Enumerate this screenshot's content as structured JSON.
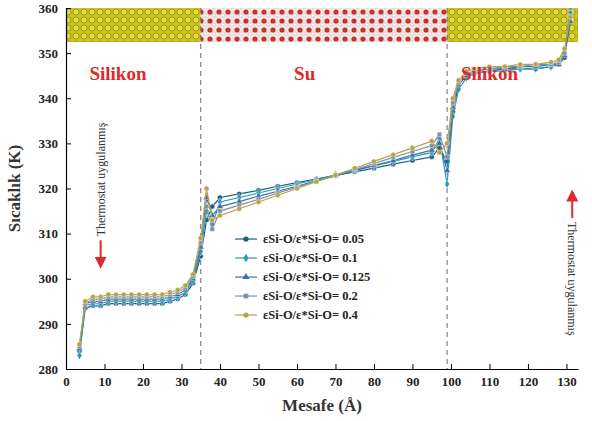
{
  "chart_data": {
    "type": "line",
    "x_label": "Mesafe (Å)",
    "y_label": "Sıcaklık (K)",
    "xlim": [
      0,
      133
    ],
    "ylim": [
      280,
      360
    ],
    "xticks": [
      0,
      10,
      20,
      30,
      40,
      50,
      60,
      70,
      80,
      90,
      100,
      110,
      120,
      130
    ],
    "yticks": [
      280,
      290,
      300,
      310,
      320,
      330,
      340,
      350,
      360
    ],
    "grid": false,
    "legend": "center",
    "interfaces": [
      35,
      99
    ],
    "annotations": [
      {
        "text": "Silikon",
        "x": 13.5,
        "y": 344
      },
      {
        "text": "Su",
        "x": 62,
        "y": 344
      },
      {
        "text": "Silikon",
        "x": 110,
        "y": 344
      }
    ],
    "side_notes": [
      {
        "text": "Thermostat uygulanmış",
        "x": 9,
        "y": 322
      },
      {
        "text": "Thermostat uygulanmış",
        "x": 131.5,
        "y": 300
      }
    ],
    "x": [
      3.5,
      5,
      7,
      9,
      11,
      13,
      15,
      17,
      19,
      21,
      23,
      25,
      27,
      29,
      31,
      33,
      35,
      36.5,
      38,
      40,
      45,
      50,
      55,
      60,
      65,
      70,
      75,
      80,
      85,
      90,
      95,
      97,
      99,
      100.5,
      102,
      104,
      106,
      110,
      114,
      118,
      122,
      126,
      128,
      129.5,
      131
    ],
    "series": [
      {
        "name": "εSi-O/ε*Si-O= 0.05",
        "color": "#1b5e80",
        "marker": "circle",
        "values": [
          284,
          293.5,
          294,
          294,
          294.5,
          294.5,
          294.5,
          294.5,
          294.5,
          294.5,
          294.5,
          294.5,
          295,
          295.5,
          296.5,
          299,
          305,
          313,
          316,
          318,
          318.8,
          319.6,
          320.5,
          321.3,
          322.1,
          322.9,
          323.7,
          324.5,
          325.4,
          326.2,
          327,
          329,
          326,
          337,
          343,
          345,
          345.5,
          346,
          346.5,
          346.5,
          346.5,
          347,
          347.5,
          349,
          358
        ]
      },
      {
        "name": "εSi-O/ε*Si-O= 0.1",
        "color": "#2a9bb0",
        "marker": "diamond",
        "values": [
          283,
          294,
          294.5,
          294.5,
          295,
          295,
          295,
          295,
          295,
          295,
          295,
          295,
          295.5,
          296,
          297,
          299.5,
          306,
          315,
          312,
          317,
          318,
          319,
          320,
          321,
          322,
          323,
          324,
          325,
          326,
          327,
          328,
          331,
          321,
          336,
          342,
          344.5,
          345.5,
          346,
          346,
          346.5,
          346.5,
          347,
          348,
          350,
          359
        ]
      },
      {
        "name": "εSi-O/ε*Si-O= 0.125",
        "color": "#3d6ea8",
        "marker": "triangle",
        "values": [
          284.5,
          294.5,
          295,
          295,
          295.5,
          295.5,
          295.5,
          295.5,
          295.5,
          295.5,
          295.5,
          295.5,
          296,
          296.5,
          297.5,
          300,
          307,
          318,
          314,
          316,
          317.1,
          318.3,
          319.4,
          320.5,
          321.7,
          322.8,
          324,
          325.1,
          326.2,
          327.4,
          328.5,
          330,
          324,
          338,
          343,
          345,
          346,
          346.5,
          346.5,
          347,
          347,
          347.5,
          347.5,
          349.5,
          357
        ]
      },
      {
        "name": "εSi-O/ε*Si-O= 0.2",
        "color": "#7a93a8",
        "marker": "square",
        "values": [
          285,
          294.5,
          295.5,
          295.5,
          296,
          296,
          296,
          296,
          296,
          296,
          296,
          296,
          296.5,
          297,
          298,
          300.5,
          308,
          316,
          311,
          315,
          316.3,
          317.6,
          319,
          320.3,
          321.6,
          322.9,
          324.2,
          325.5,
          326.9,
          328.2,
          329.5,
          332,
          327,
          339,
          343.5,
          345.5,
          346,
          346.5,
          347,
          347,
          347.5,
          347.5,
          348,
          350,
          360
        ]
      },
      {
        "name": "εSi-O/ε*Si-O= 0.4",
        "color": "#b8a24a",
        "marker": "circle",
        "values": [
          285.5,
          295,
          296,
          296,
          296.5,
          296.5,
          296.5,
          296.5,
          296.5,
          296.5,
          296.5,
          296.5,
          297,
          297.5,
          298.5,
          301,
          309,
          320,
          313,
          314,
          315.5,
          317,
          318.5,
          320,
          321.5,
          323,
          324.5,
          326,
          327.5,
          329,
          330.5,
          328,
          330,
          340,
          344,
          346,
          346.5,
          347,
          347,
          347.5,
          347.5,
          348,
          348.5,
          351,
          358
        ]
      }
    ]
  }
}
